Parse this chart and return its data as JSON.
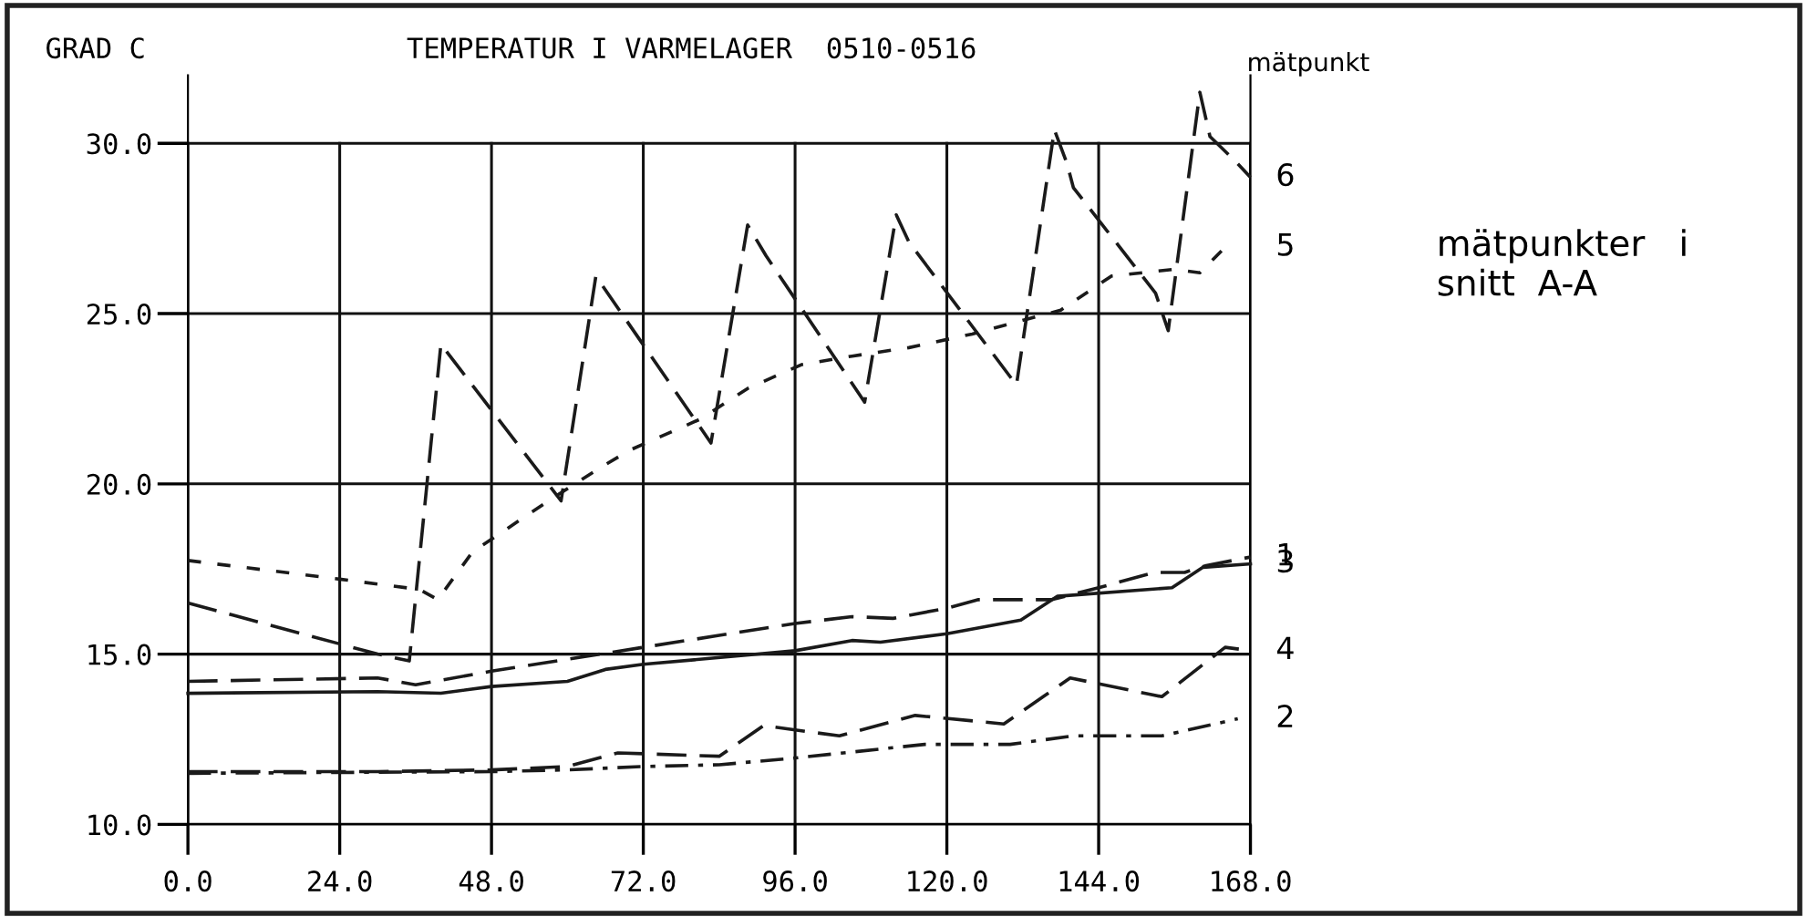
{
  "chart_data": {
    "type": "line",
    "title": "TEMPERATUR I VARMELAGER  0510-0516",
    "ylabel": "GRAD C",
    "annotations": [
      "mätpunkt",
      "mätpunkter   i\nsnitt  A-A"
    ],
    "xlim": [
      0,
      168
    ],
    "ylim": [
      10,
      32
    ],
    "xticks": [
      {
        "value": 0,
        "label": "0.0"
      },
      {
        "value": 24,
        "label": "24.0"
      },
      {
        "value": 48,
        "label": "48.0"
      },
      {
        "value": 72,
        "label": "72.0"
      },
      {
        "value": 96,
        "label": "96.0"
      },
      {
        "value": 120,
        "label": "120.0"
      },
      {
        "value": 144,
        "label": "144.0"
      },
      {
        "value": 168,
        "label": "168.0"
      }
    ],
    "yticks": [
      {
        "value": 10,
        "label": "10.0"
      },
      {
        "value": 15,
        "label": "15.0"
      },
      {
        "value": 20,
        "label": "20.0"
      },
      {
        "value": 25,
        "label": "25.0"
      },
      {
        "value": 30,
        "label": "30.0"
      }
    ],
    "grid": true,
    "legend": false,
    "marker": "none",
    "series": [
      {
        "name": "6",
        "color": "#1a1a1a",
        "line_style": "dashed",
        "x": [
          0,
          30,
          35,
          40,
          59,
          64.5,
          82.7,
          88.5,
          91.4,
          107,
          112,
          114,
          131,
          137,
          139,
          140,
          153,
          155,
          160,
          161.6,
          166,
          168
        ],
        "values": [
          16.5,
          15.0,
          14.8,
          24.1,
          19.5,
          26.1,
          21.2,
          27.6,
          26.7,
          22.4,
          27.9,
          27.1,
          22.9,
          30.4,
          29.4,
          28.7,
          25.6,
          24.5,
          31.5,
          30.2,
          29.4,
          29.0
        ]
      },
      {
        "name": "5",
        "color": "#1a1a1a",
        "line_style": "dotted",
        "x": [
          0,
          24,
          36.6,
          39.5,
          45,
          57,
          65.4,
          70,
          81,
          88.5,
          97,
          105,
          114,
          124,
          138,
          146,
          156,
          160,
          164
        ],
        "values": [
          17.75,
          17.2,
          16.9,
          16.6,
          18.0,
          19.5,
          20.5,
          21.0,
          21.9,
          22.8,
          23.5,
          23.75,
          24.0,
          24.4,
          25.1,
          26.1,
          26.3,
          26.2,
          26.95
        ]
      },
      {
        "name": "1",
        "color": "#1a1a1a",
        "line_style": "dashed",
        "x": [
          0,
          30,
          36,
          48,
          72,
          84,
          96,
          105,
          111.5,
          120,
          125,
          136.6,
          144,
          152.8,
          157.6,
          161,
          168
        ],
        "values": [
          14.2,
          14.3,
          14.1,
          14.5,
          15.2,
          15.55,
          15.9,
          16.1,
          16.05,
          16.35,
          16.6,
          16.6,
          16.95,
          17.4,
          17.4,
          17.6,
          17.85
        ]
      },
      {
        "name": "3",
        "color": "#1a1a1a",
        "line_style": "solid",
        "x": [
          0,
          30,
          40,
          48,
          60,
          66,
          72,
          96,
          105,
          109.5,
          120,
          131.7,
          137.5,
          155.6,
          160.5,
          168
        ],
        "values": [
          13.85,
          13.9,
          13.85,
          14.05,
          14.2,
          14.55,
          14.7,
          15.1,
          15.4,
          15.35,
          15.6,
          16.0,
          16.7,
          16.95,
          17.55,
          17.65
        ]
      },
      {
        "name": "4",
        "color": "#1a1a1a",
        "line_style": "dashed",
        "x": [
          0,
          30,
          48,
          60,
          68,
          84,
          91,
          103,
          115,
          129,
          139.5,
          154,
          164,
          168
        ],
        "values": [
          11.55,
          11.55,
          11.6,
          11.7,
          12.1,
          12.0,
          12.9,
          12.6,
          13.2,
          12.95,
          14.3,
          13.75,
          15.2,
          15.1
        ]
      },
      {
        "name": "2",
        "color": "#1a1a1a",
        "line_style": "dashdot",
        "x": [
          0,
          48,
          60,
          72,
          84,
          96,
          116.5,
          130,
          140,
          154,
          166
        ],
        "values": [
          11.5,
          11.55,
          11.6,
          11.7,
          11.75,
          11.95,
          12.35,
          12.35,
          12.6,
          12.6,
          13.1
        ]
      }
    ]
  }
}
